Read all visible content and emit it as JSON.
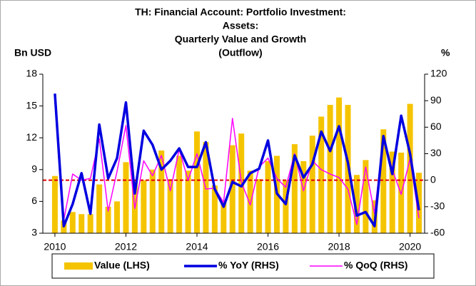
{
  "chart_data": {
    "type": "bar_line",
    "title": [
      "TH: Financial Account: Portfolio Investment:",
      "Assets:",
      "Quarterly Value and Growth",
      "(Outflow)"
    ],
    "y_label": "Bn USD",
    "y2_label": "%",
    "x": [
      2010,
      2010.25,
      2010.5,
      2010.75,
      2011,
      2011.25,
      2011.5,
      2011.75,
      2012,
      2012.25,
      2012.5,
      2012.75,
      2013,
      2013.25,
      2013.5,
      2013.75,
      2014,
      2014.25,
      2014.5,
      2014.75,
      2015,
      2015.25,
      2015.5,
      2015.75,
      2016,
      2016.25,
      2016.5,
      2016.75,
      2017,
      2017.25,
      2017.5,
      2017.75,
      2018,
      2018.25,
      2018.5,
      2018.75,
      2019,
      2019.25,
      2019.5,
      2019.75,
      2020,
      2020.25
    ],
    "xlim": [
      2009.66,
      2020.41
    ],
    "xticks": [
      2010,
      2012,
      2014,
      2016,
      2018,
      2020
    ],
    "ylim": [
      3,
      18
    ],
    "yticks": [
      3,
      6,
      9,
      12,
      15,
      18
    ],
    "y2lim": [
      -60,
      120
    ],
    "y2ticks": [
      -60,
      -30,
      0,
      30,
      60,
      90,
      120
    ],
    "series": [
      {
        "name": "Value (LHS)",
        "kind": "bar",
        "color": "#f5c400",
        "values": [
          8.4,
          4.2,
          5.0,
          4.8,
          4.8,
          7.6,
          5.5,
          6.0,
          9.7,
          8.0,
          8.0,
          9.0,
          10.8,
          8.1,
          10.3,
          8.9,
          12.6,
          11.6,
          7.5,
          6.1,
          11.3,
          12.4,
          8.9,
          8.1,
          9.8,
          10.3,
          8.0,
          11.4,
          9.8,
          12.2,
          14.0,
          15.1,
          15.8,
          15.1,
          8.5,
          9.9,
          6.1,
          12.8,
          10.7,
          10.6,
          15.2,
          8.7
        ]
      },
      {
        "name": "% YoY (RHS)",
        "kind": "line",
        "axis": "y2",
        "color": "#0000e0",
        "width": 3.5,
        "values": [
          98,
          -52,
          -27,
          8,
          -38,
          63,
          2,
          25,
          88,
          -15,
          56,
          40,
          12,
          22,
          36,
          15,
          15,
          43,
          -10,
          -30,
          -2,
          -7,
          8,
          13,
          45,
          -15,
          -27,
          28,
          3,
          18,
          55,
          33,
          61,
          20,
          -40,
          -36,
          -52,
          50,
          7,
          73,
          30,
          -34
        ]
      },
      {
        "name": "% QoQ (RHS)",
        "kind": "line",
        "axis": "y2",
        "color": "#ff00ff",
        "width": 1.5,
        "values": [
          90,
          -45,
          7,
          0,
          2,
          47,
          -35,
          10,
          62,
          -32,
          22,
          5,
          28,
          -12,
          35,
          0,
          30,
          -10,
          -9,
          -25,
          70,
          -2,
          -28,
          15,
          25,
          2,
          -8,
          30,
          -12,
          22,
          12,
          7,
          3,
          -10,
          -50,
          15,
          -38,
          50,
          12,
          -16,
          24,
          -43
        ]
      }
    ],
    "hline": {
      "value": 0,
      "axis": "y2",
      "color": "#e00000"
    }
  }
}
